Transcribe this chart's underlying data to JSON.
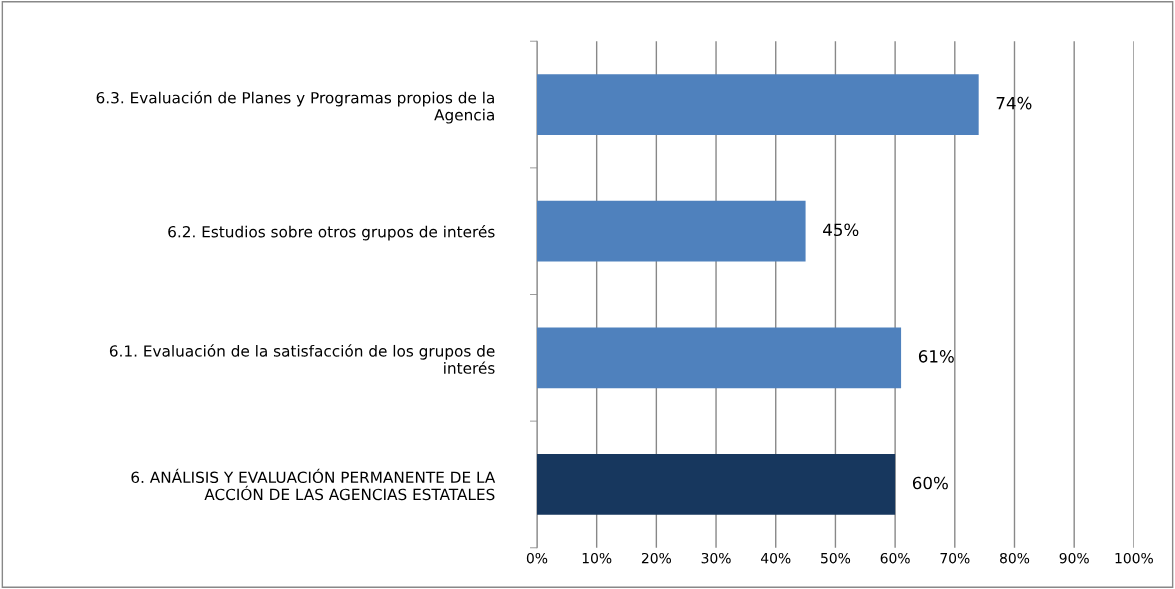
{
  "chart_data": {
    "type": "bar",
    "orientation": "horizontal",
    "categories": [
      "6.3. Evaluación de Planes y Programas propios de la\nAgencia",
      "6.2. Estudios sobre otros grupos de interés",
      "6.1. Evaluación de la satisfacción de los grupos de\ninterés",
      "6. ANÁLISIS Y EVALUACIÓN PERMANENTE DE LA\nACCIÓN DE LAS AGENCIAS ESTATALES"
    ],
    "values": [
      74,
      45,
      61,
      60
    ],
    "value_labels": [
      "74%",
      "45%",
      "61%",
      "60%"
    ],
    "colors": [
      "#4f81bd",
      "#4f81bd",
      "#4f81bd",
      "#17375e"
    ],
    "xlim": [
      0,
      100
    ],
    "xticks": [
      {
        "value": 0,
        "label": "0%"
      },
      {
        "value": 10,
        "label": "10%"
      },
      {
        "value": 20,
        "label": "20%"
      },
      {
        "value": 30,
        "label": "30%"
      },
      {
        "value": 40,
        "label": "40%"
      },
      {
        "value": 50,
        "label": "50%"
      },
      {
        "value": 60,
        "label": "60%"
      },
      {
        "value": 70,
        "label": "70%"
      },
      {
        "value": 80,
        "label": "80%"
      },
      {
        "value": 90,
        "label": "90%"
      },
      {
        "value": 100,
        "label": "100%"
      }
    ],
    "grid": "x"
  }
}
